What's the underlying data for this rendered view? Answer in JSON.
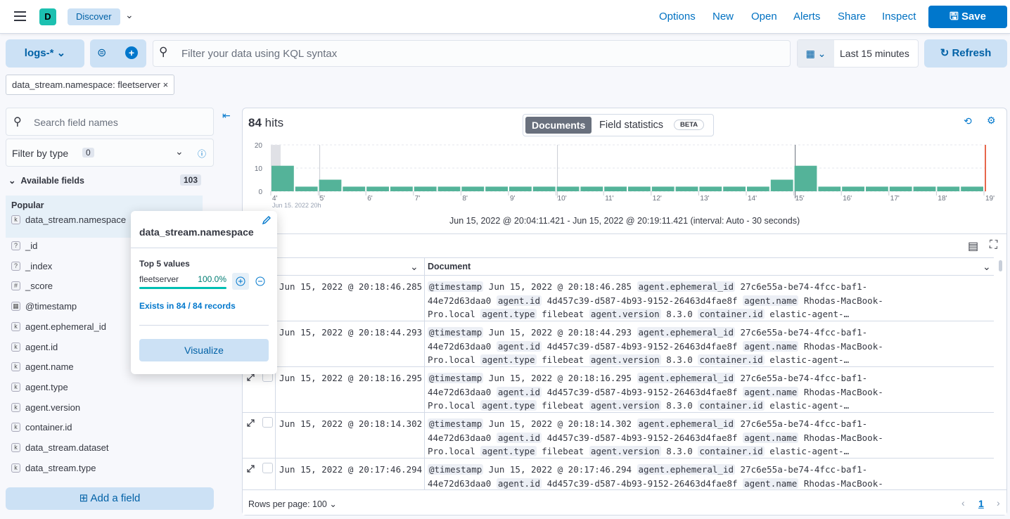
{
  "header": {
    "app_initial": "D",
    "breadcrumb": "Discover",
    "nav": [
      "Options",
      "New",
      "Open",
      "Alerts",
      "Share",
      "Inspect"
    ],
    "save": "Save"
  },
  "query": {
    "index_pattern": "logs-*",
    "placeholder": "Filter your data using KQL syntax",
    "time_range": "Last 15 minutes",
    "refresh": "Refresh",
    "filter_pill": "data_stream.namespace: fleetserver"
  },
  "sidebar": {
    "search_placeholder": "Search field names",
    "filter_by_type": "Filter by type",
    "filter_count": "0",
    "available_label": "Available fields",
    "available_count": "103",
    "popular_label": "Popular",
    "popular": [
      {
        "type": "k",
        "name": "data_stream.namespace"
      }
    ],
    "fields": [
      {
        "type": "?",
        "name": "_id"
      },
      {
        "type": "?",
        "name": "_index"
      },
      {
        "type": "#",
        "name": "_score"
      },
      {
        "type": "▦",
        "name": "@timestamp"
      },
      {
        "type": "k",
        "name": "agent.ephemeral_id"
      },
      {
        "type": "k",
        "name": "agent.id"
      },
      {
        "type": "k",
        "name": "agent.name"
      },
      {
        "type": "k",
        "name": "agent.type"
      },
      {
        "type": "k",
        "name": "agent.version"
      },
      {
        "type": "k",
        "name": "container.id"
      },
      {
        "type": "k",
        "name": "data_stream.dataset"
      },
      {
        "type": "k",
        "name": "data_stream.type"
      }
    ],
    "add_field": "Add a field"
  },
  "main": {
    "hits_count": "84",
    "hits_label": "hits",
    "tab_documents": "Documents",
    "tab_field_stats": "Field statistics",
    "beta": "BETA",
    "time_caption": "Jun 15, 2022 @ 20:04:11.421 - Jun 15, 2022 @ 20:19:11.421 (interval: Auto - 30 seconds)",
    "doc_header": "Document",
    "rows_per_page": "Rows per page: 100",
    "page": "1"
  },
  "chart_data": {
    "type": "bar",
    "ylim": [
      0,
      20
    ],
    "yticks": [
      "0",
      "10",
      "20"
    ],
    "xticks": [
      "4'",
      "5'",
      "6'",
      "7'",
      "8'",
      "9'",
      "10'",
      "11'",
      "12'",
      "13'",
      "14'",
      "15'",
      "16'",
      "17'",
      "18'",
      "19'"
    ],
    "x_sublabel": "Jun 15, 2022 20h",
    "values": [
      11,
      2,
      5,
      2,
      2,
      2,
      2,
      2,
      2,
      2,
      2,
      2,
      2,
      2,
      2,
      2,
      2,
      2,
      2,
      2,
      2,
      5,
      11,
      2,
      2,
      2,
      2,
      2,
      2,
      2
    ],
    "bar_color": "#54b399",
    "now_marker_color": "#e7664c",
    "grid": true
  },
  "rows": [
    {
      "ts": "Jun 15, 2022 @ 20:18:46.285",
      "l1": "Jun 15, 2022 @ 20:18:46.285"
    },
    {
      "ts": "Jun 15, 2022 @ 20:18:44.293",
      "l1": "Jun 15, 2022 @ 20:18:44.293"
    },
    {
      "ts": "Jun 15, 2022 @ 20:18:16.295",
      "l1": "Jun 15, 2022 @ 20:18:16.295"
    },
    {
      "ts": "Jun 15, 2022 @ 20:18:14.302",
      "l1": "Jun 15, 2022 @ 20:18:14.302"
    },
    {
      "ts": "Jun 15, 2022 @ 20:17:46.294",
      "l1": "Jun 15, 2022 @ 20:17:46.294"
    }
  ],
  "doc": {
    "k_ts": "@timestamp",
    "k_eph": "agent.ephemeral_id",
    "v_eph1": "27c6e55a-be74-4fcc-baf1-",
    "v_eph2": "44e72d63daa0",
    "k_id": "agent.id",
    "v_id": "4d457c39-d587-4b93-9152-26463d4fae8f",
    "k_name": "agent.name",
    "v_name1": "Rhodas-MacBook-",
    "v_name2": "Pro.local",
    "k_type": "agent.type",
    "v_type": "filebeat",
    "k_ver": "agent.version",
    "v_ver": "8.3.0",
    "k_cont": "container.id",
    "v_cont": "elastic-agent-…"
  },
  "popover": {
    "title": "data_stream.namespace",
    "top_label": "Top 5 values",
    "value": "fleetserver",
    "percent": "100.0%",
    "fraction": 1.0,
    "exists": "Exists in 84 / 84 records",
    "visualize": "Visualize"
  }
}
